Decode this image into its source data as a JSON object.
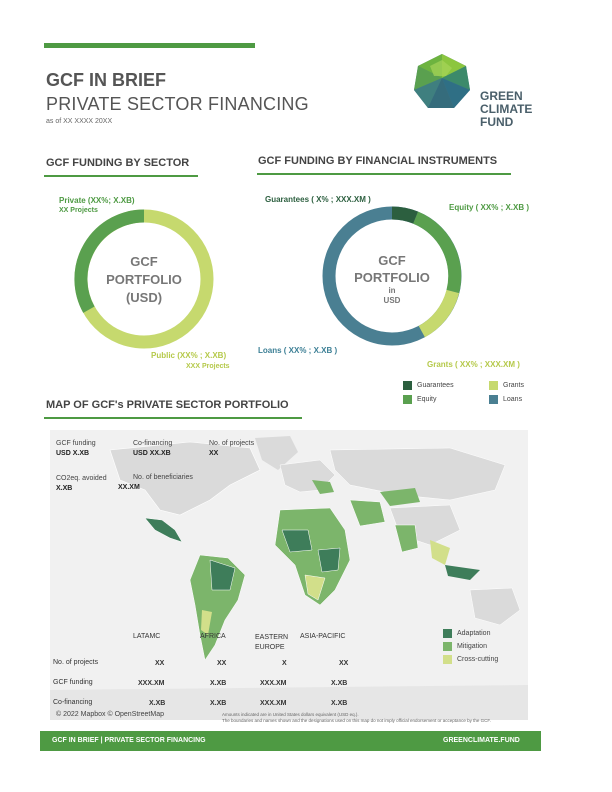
{
  "header": {
    "title": "GCF IN BRIEF",
    "subtitle": "PRIVATE SECTOR FINANCING",
    "as_of": "as of XX XXXX 20XX",
    "logo_text": [
      "GREEN",
      "CLIMATE",
      "FUND"
    ]
  },
  "sector": {
    "heading": "GCF FUNDING BY SECTOR",
    "private_label": "Private (XX%; X.XB)",
    "private_projects": "XX Projects",
    "public_label": "Public (XX% ; X.XB)",
    "public_projects": "XXX Projects",
    "center": [
      "GCF",
      "PORTFOLIO",
      "(USD)"
    ]
  },
  "instruments": {
    "heading": "GCF FUNDING BY FINANCIAL INSTRUMENTS",
    "guarantees_label": "Guarantees ( X% ; XXX.XM )",
    "equity_label": "Equity ( XX% ; X.XB )",
    "loans_label": "Loans ( XX% ; X.XB )",
    "grants_label": "Grants ( XX% ; XXX.XM )",
    "center": [
      "GCF",
      "PORTFOLIO",
      "in",
      "USD"
    ],
    "legend": [
      {
        "label": "Guarantees",
        "color": "#2c5f3f"
      },
      {
        "label": "Grants",
        "color": "#c6d96e"
      },
      {
        "label": "Equity",
        "color": "#5aa04f"
      },
      {
        "label": "Loans",
        "color": "#4a7f92"
      }
    ]
  },
  "map": {
    "heading": "MAP OF GCF's PRIVATE SECTOR PORTFOLIO",
    "stats": {
      "gcf_funding_label": "GCF funding",
      "gcf_funding_value": "USD X.XB",
      "cofinancing_label": "Co-financing",
      "cofinancing_value": "USD XX.XB",
      "projects_label": "No. of projects",
      "projects_value": "XX",
      "co2_label": "CO2eq. avoided",
      "co2_value": "X.XB",
      "beneficiaries_label": "No. of beneficiaries",
      "beneficiaries_value": "XX.XM"
    },
    "legend": [
      {
        "label": "Adaptation",
        "color": "#3e7d5a"
      },
      {
        "label": "Mitigation",
        "color": "#7cb56b"
      },
      {
        "label": "Cross-cutting",
        "color": "#d2df8a"
      }
    ],
    "regions": [
      "LATAMC",
      "AFRICA",
      "EASTERN EUROPE",
      "ASIA-PACIFIC"
    ],
    "rows": [
      {
        "label": "No. of projects",
        "values": [
          "XX",
          "XX",
          "X",
          "XX"
        ]
      },
      {
        "label": "GCF funding",
        "values": [
          "XXX.XM",
          "X.XB",
          "XXX.XM",
          "X.XB"
        ]
      },
      {
        "label": "Co-financing",
        "values": [
          "X.XB",
          "X.XB",
          "XXX.XM",
          "X.XB"
        ]
      }
    ],
    "attribution": "© 2022 Mapbox © OpenStreetMap",
    "note1": "Amounts indicated are in United States dollars equivalent (USD eq.).",
    "note2": "The boundaries and names shown and the designations used on this map do not imply official endorsement or acceptance by the GCF."
  },
  "footer": {
    "left": "GCF IN BRIEF | PRIVATE SECTOR FINANCING",
    "right": "GREENCLIMATE.FUND"
  }
}
